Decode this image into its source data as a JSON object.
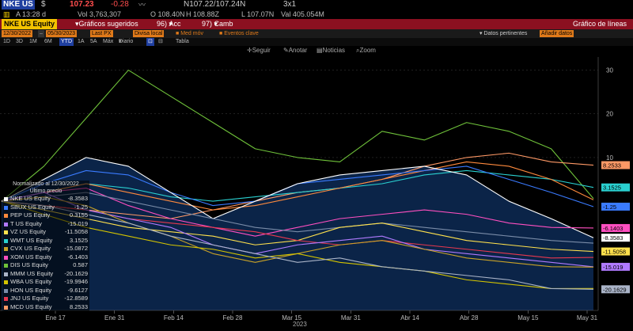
{
  "header": {
    "ticker": "NKE US",
    "currency": "$",
    "last": "107.23",
    "change": "-0.28",
    "vol": "Vol 3,763,307",
    "open": "O 108.40N",
    "bidask": "N107.22/107.24N",
    "size": "3x1",
    "time": "A 13:28 d",
    "high": "H 108.88Z",
    "low": "L 107.07N",
    "val": "Val 405.054M"
  },
  "command_bar": {
    "security": "NKE US Equity",
    "suggested": "Gráficos sugeridos",
    "actions": "Acc",
    "change": "Camb",
    "title": "Gráfico de líneas"
  },
  "options": {
    "start_date": "12/30/2022",
    "end_date": "05/30/2023",
    "price": "Last PX",
    "local": "Divisa local",
    "med": "Med móv",
    "events": "Eventos clave",
    "datos": "Datos pertinentes",
    "add": "Añadir datos"
  },
  "periods": [
    "1D",
    "3D",
    "1M",
    "6M",
    "YTD",
    "1A",
    "5A",
    "Máx",
    "Diario"
  ],
  "period_extra": "Tabla",
  "toolbar": {
    "follow": "Seguir",
    "annotate": "Anotar",
    "news": "Noticias",
    "zoom": "Zoom"
  },
  "legend": {
    "header": "Normalizado al 12/30/2022",
    "subheader": "Último precio",
    "items": [
      {
        "name": "NKE US Equity",
        "value": "-8.3583",
        "color": "#ffffff"
      },
      {
        "name": "SBUX US Equity",
        "value": "-1.25",
        "color": "#3a7bff"
      },
      {
        "name": "PEP US Equity",
        "value": "0.3155",
        "color": "#ff8a3d"
      },
      {
        "name": "T US Equity",
        "value": "-15.019",
        "color": "#b07aff"
      },
      {
        "name": "VZ US Equity",
        "value": "-11.5058",
        "color": "#ffe14d"
      },
      {
        "name": "WMT US Equity",
        "value": "3.1525",
        "color": "#2ad0d0"
      },
      {
        "name": "CVX US Equity",
        "value": "-15.0872",
        "color": "#c9a227"
      },
      {
        "name": "XOM US Equity",
        "value": "-6.1403",
        "color": "#ff4fc0"
      },
      {
        "name": "DIS US Equity",
        "value": "0.587",
        "color": "#6fc23a"
      },
      {
        "name": "MMM US Equity",
        "value": "-20.1629",
        "color": "#aab4c8"
      },
      {
        "name": "WBA US Equity",
        "value": "-19.9946",
        "color": "#d4c400"
      },
      {
        "name": "HON US Equity",
        "value": "-9.6127",
        "color": "#7a8ca8"
      },
      {
        "name": "JNJ US Equity",
        "value": "-12.8589",
        "color": "#e8384f"
      },
      {
        "name": "MCD US Equity",
        "value": "8.2533",
        "color": "#ff9966"
      }
    ]
  },
  "chart_data": {
    "type": "line",
    "x_ticks": [
      "Ene 17",
      "Ene 31",
      "Feb 14",
      "Feb 28",
      "Mar 15",
      "Mar 31",
      "Abr 14",
      "Abr 28",
      "May 15",
      "May 31"
    ],
    "year_label": "2023",
    "y_ticks": [
      30,
      20,
      10
    ],
    "ylim": [
      -25,
      33
    ],
    "series": [
      {
        "name": "DIS US Equity",
        "color": "#6fc23a",
        "values": [
          0,
          8,
          19,
          30,
          24,
          18,
          12,
          10,
          9,
          16,
          14,
          18,
          16,
          12,
          0.6
        ]
      },
      {
        "name": "MCD US Equity",
        "color": "#ff9966",
        "values": [
          0,
          -1,
          -2,
          -3,
          -4,
          -2,
          0,
          2,
          3,
          5,
          8,
          10,
          11,
          9,
          8.25
        ]
      },
      {
        "name": "WMT US Equity",
        "color": "#2ad0d0",
        "values": [
          0,
          2,
          4,
          3,
          1,
          0,
          1,
          2,
          3,
          4,
          6,
          7,
          6,
          5,
          3.15
        ]
      },
      {
        "name": "PEP US Equity",
        "color": "#ff8a3d",
        "values": [
          0,
          2,
          4,
          2,
          0,
          -2,
          -1,
          1,
          3,
          5,
          7,
          9,
          8,
          5,
          0.3
        ]
      },
      {
        "name": "SBUX US Equity",
        "color": "#3a7bff",
        "values": [
          0,
          4,
          7,
          6,
          2,
          -1,
          0,
          4,
          5,
          6,
          7,
          8,
          5,
          2,
          -1.25
        ]
      },
      {
        "name": "NKE US Equity",
        "color": "#ffffff",
        "values": [
          0,
          5,
          10,
          8,
          2,
          -4,
          0,
          4,
          6,
          7,
          8,
          6,
          0,
          -4,
          -8.36
        ]
      },
      {
        "name": "XOM US Equity",
        "color": "#ff4fc0",
        "values": [
          0,
          2,
          3,
          -1,
          -4,
          -6,
          -8,
          -6,
          -4,
          -3,
          -2,
          -3,
          -5,
          -6,
          -6.14
        ]
      },
      {
        "name": "HON US Equity",
        "color": "#7a8ca8",
        "values": [
          0,
          1,
          2,
          0,
          -2,
          -4,
          -6,
          -7,
          -6,
          -5,
          -6,
          -7,
          -8,
          -9,
          -9.6
        ]
      },
      {
        "name": "VZ US Equity",
        "color": "#ffe14d",
        "values": [
          0,
          -2,
          -4,
          -6,
          -7,
          -8,
          -10,
          -9,
          -6,
          -5,
          -7,
          -9,
          -10,
          -11,
          -11.5
        ]
      },
      {
        "name": "JNJ US Equity",
        "color": "#e8384f",
        "values": [
          0,
          -1,
          -2,
          -4,
          -5,
          -6,
          -7,
          -9,
          -10,
          -9,
          -10,
          -11,
          -12,
          -13,
          -12.86
        ]
      },
      {
        "name": "T US Equity",
        "color": "#b07aff",
        "values": [
          0,
          2,
          -2,
          -4,
          -6,
          -10,
          -12,
          -10,
          -9,
          -8,
          -11,
          -12,
          -13,
          -14,
          -15.02
        ]
      },
      {
        "name": "CVX US Equity",
        "color": "#c9a227",
        "values": [
          0,
          1,
          -1,
          -5,
          -8,
          -12,
          -14,
          -12,
          -10,
          -9,
          -11,
          -13,
          -14,
          -15,
          -15.09
        ]
      },
      {
        "name": "WBA US Equity",
        "color": "#d4c400",
        "values": [
          0,
          -3,
          -6,
          -8,
          -10,
          -11,
          -13,
          -12,
          -14,
          -15,
          -16,
          -18,
          -19,
          -20,
          -19.99
        ]
      },
      {
        "name": "MMM US Equity",
        "color": "#aab4c8",
        "values": [
          0,
          -1,
          -3,
          -5,
          -8,
          -10,
          -12,
          -14,
          -13,
          -15,
          -16,
          -17,
          -18,
          -20,
          -20.16
        ]
      }
    ],
    "end_labels": [
      {
        "text": "8.2533",
        "value": 8.2533,
        "color": "#ff9966"
      },
      {
        "text": "3.1525",
        "value": 3.1525,
        "color": "#2ad0d0"
      },
      {
        "text": "-1.25",
        "value": -1.25,
        "color": "#3a7bff"
      },
      {
        "text": "-6.1403",
        "value": -6.1403,
        "color": "#ff4fc0"
      },
      {
        "text": "-8.3583",
        "value": -8.3583,
        "color": "#ffffff"
      },
      {
        "text": "-11.5058",
        "value": -11.5058,
        "color": "#ffe14d"
      },
      {
        "text": "-15.019",
        "value": -15.019,
        "color": "#b07aff"
      },
      {
        "text": "-20.1629",
        "value": -20.1629,
        "color": "#aab4c8"
      }
    ]
  }
}
